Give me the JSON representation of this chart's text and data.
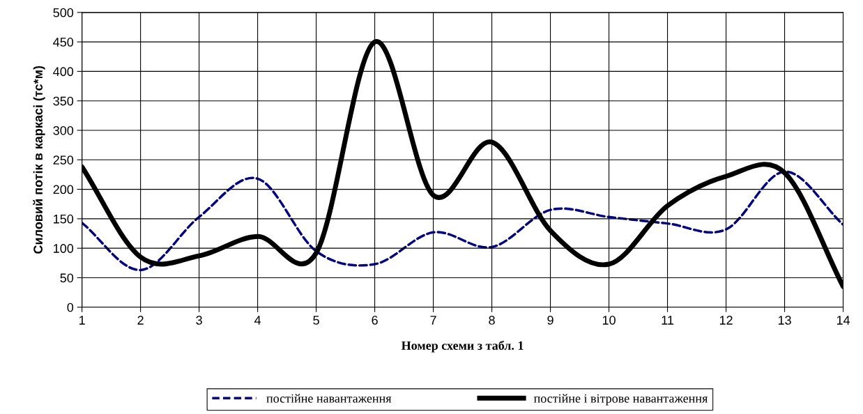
{
  "chart_data": {
    "type": "line",
    "xlabel": "Номер схеми з табл. 1",
    "ylabel": "Силовий потік в каркасі (тс*м)",
    "x": [
      1,
      2,
      3,
      4,
      5,
      6,
      7,
      8,
      9,
      10,
      11,
      12,
      13,
      14
    ],
    "xlim": [
      1,
      14
    ],
    "xticks": [
      1,
      2,
      3,
      4,
      5,
      6,
      7,
      8,
      9,
      10,
      11,
      12,
      13,
      14
    ],
    "ylim": [
      0,
      500
    ],
    "yticks": [
      0,
      50,
      100,
      150,
      200,
      250,
      300,
      350,
      400,
      450,
      500
    ],
    "grid": true,
    "legend": "bottom",
    "marker": "none",
    "series": [
      {
        "name": "постійне навантаження",
        "color": "#000080",
        "line_style": "dashed",
        "values": [
          143,
          63,
          153,
          218,
          95,
          73,
          127,
          102,
          165,
          153,
          142,
          132,
          230,
          140
        ]
      },
      {
        "name": "постійне і вітрове навантаження",
        "color": "#000000",
        "line_style": "solid",
        "values": [
          238,
          85,
          87,
          120,
          92,
          450,
          190,
          280,
          130,
          73,
          172,
          222,
          228,
          35
        ]
      }
    ]
  }
}
